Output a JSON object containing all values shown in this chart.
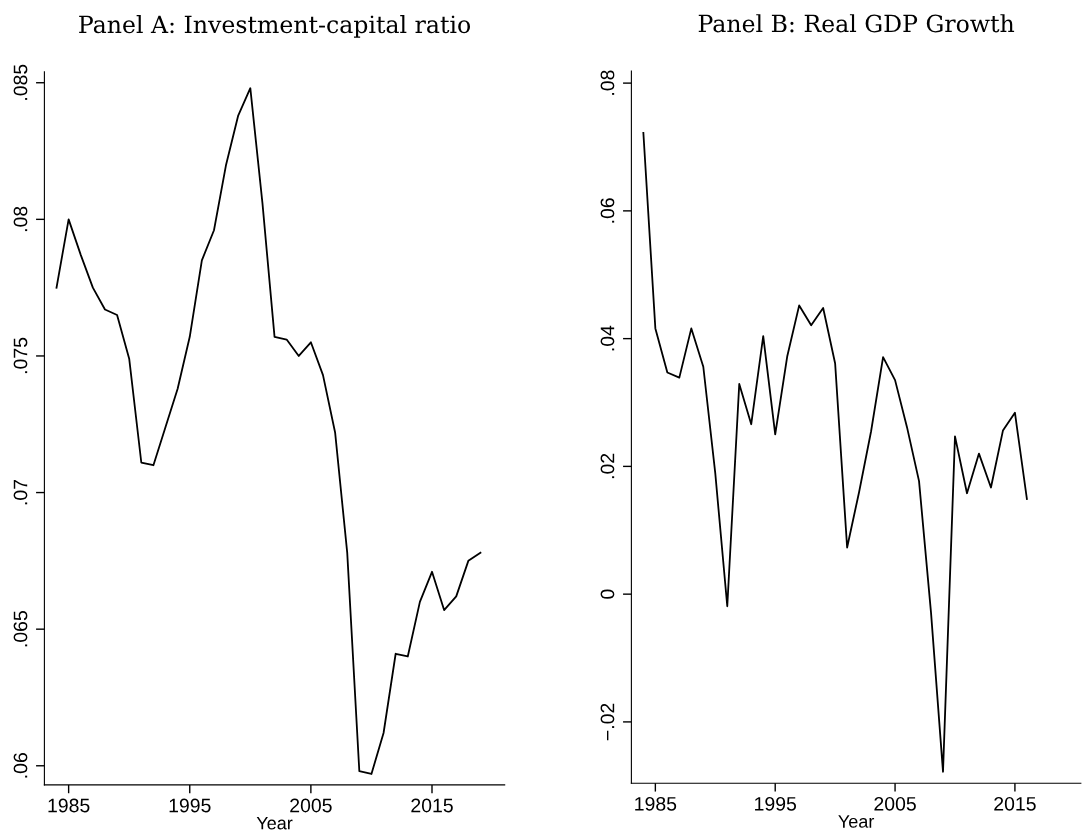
{
  "chart_data": [
    {
      "type": "line",
      "title": "Panel A: Investment-capital ratio",
      "xlabel": "Year",
      "x": [
        1984,
        1985,
        1986,
        1987,
        1988,
        1989,
        1990,
        1991,
        1992,
        1993,
        1994,
        1995,
        1996,
        1997,
        1998,
        1999,
        2000,
        2001,
        2002,
        2003,
        2004,
        2005,
        2006,
        2007,
        2008,
        2009,
        2010,
        2011,
        2012,
        2013,
        2014,
        2015,
        2016,
        2017,
        2018,
        2019
      ],
      "series": [
        {
          "color": "#000000",
          "values": [
            0.0775,
            0.08,
            0.0787,
            0.0775,
            0.0767,
            0.0765,
            0.0749,
            0.0711,
            0.071,
            0.0724,
            0.0738,
            0.0757,
            0.0785,
            0.0796,
            0.082,
            0.0838,
            0.0848,
            0.0806,
            0.0757,
            0.0756,
            0.075,
            0.0755,
            0.0743,
            0.0722,
            0.0678,
            0.0598,
            0.0597,
            0.0612,
            0.0641,
            0.064,
            0.066,
            0.0671,
            0.0657,
            0.0662,
            0.0675,
            0.0678
          ]
        }
      ],
      "xlim": [
        1983,
        2021
      ],
      "xticks": [
        1985,
        1995,
        2005,
        2015
      ],
      "ylim": [
        0.0593,
        0.0854
      ],
      "yticks": [
        {
          "value": 0.06,
          "label": ".06"
        },
        {
          "value": 0.065,
          "label": ".065"
        },
        {
          "value": 0.07,
          "label": ".07"
        },
        {
          "value": 0.075,
          "label": ".075"
        },
        {
          "value": 0.08,
          "label": ".08"
        },
        {
          "value": 0.085,
          "label": ".085"
        }
      ],
      "grid": false,
      "legend": false
    },
    {
      "type": "line",
      "title": "Panel B: Real GDP Growth",
      "xlabel": "Year",
      "x": [
        1984,
        1985,
        1986,
        1987,
        1988,
        1989,
        1990,
        1991,
        1992,
        1993,
        1994,
        1995,
        1996,
        1997,
        1998,
        1999,
        2000,
        2001,
        2002,
        2003,
        2004,
        2005,
        2006,
        2007,
        2008,
        2009,
        2010,
        2011,
        2012,
        2013,
        2014,
        2015,
        2016
      ],
      "series": [
        {
          "color": "#000000",
          "values": [
            0.0722,
            0.0416,
            0.0347,
            0.0339,
            0.0416,
            0.0356,
            0.0189,
            -0.0019,
            0.0329,
            0.0266,
            0.0404,
            0.025,
            0.0372,
            0.0452,
            0.0421,
            0.0448,
            0.0361,
            0.0073,
            0.016,
            0.0255,
            0.0371,
            0.0335,
            0.0261,
            0.0177,
            -0.0029,
            -0.0278,
            0.0247,
            0.0158,
            0.022,
            0.0167,
            0.0256,
            0.0284,
            0.0149
          ]
        }
      ],
      "xlim": [
        1983,
        2020.5
      ],
      "xticks": [
        1985,
        1995,
        2005,
        2015
      ],
      "ylim": [
        -0.0296,
        0.0819
      ],
      "yticks": [
        {
          "value": -0.02,
          "label": "−.02"
        },
        0,
        {
          "value": 0.02,
          "label": ".02"
        },
        {
          "value": 0.04,
          "label": ".04"
        },
        {
          "value": 0.06,
          "label": ".06"
        },
        {
          "value": 0.08,
          "label": ".08"
        }
      ],
      "grid": false,
      "legend": false
    }
  ]
}
